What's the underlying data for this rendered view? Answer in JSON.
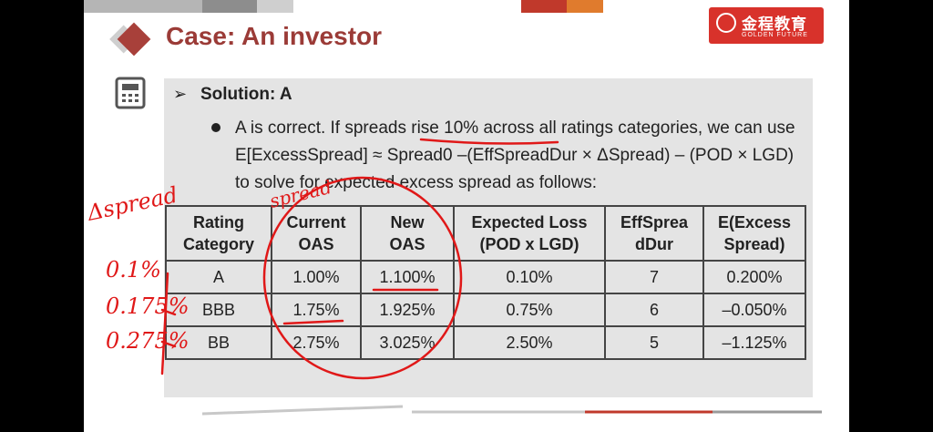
{
  "slide": {
    "title": "Case: An investor",
    "logo_text_cn": "金程教育",
    "logo_text_en": "GOLDEN FUTURE",
    "solution_heading": "Solution: A",
    "paragraph": "A is correct. If spreads rise 10% across all ratings categories, we can use E[ExcessSpread] ≈ Spread0 –(EffSpreadDur × ΔSpread) – (POD × LGD) to solve for expected excess spread as follows:"
  },
  "table": {
    "headers": [
      [
        "Rating",
        "Category"
      ],
      [
        "Current",
        "OAS"
      ],
      [
        "New",
        "OAS"
      ],
      [
        "Expected Loss",
        "(POD x LGD)"
      ],
      [
        "EffSprea",
        "dDur"
      ],
      [
        "E(Excess",
        "Spread)"
      ]
    ],
    "rows": [
      [
        "A",
        "1.00%",
        "1.100%",
        "0.10%",
        "7",
        "0.200%"
      ],
      [
        "BBB",
        "1.75%",
        "1.925%",
        "0.75%",
        "6",
        "–0.050%"
      ],
      [
        "BB",
        "2.75%",
        "3.025%",
        "2.50%",
        "5",
        "–1.125%"
      ]
    ]
  },
  "annotations": {
    "delta_spread": "Δspread",
    "spread_label": "spread",
    "row_marks": [
      "0.1%",
      "0.175%",
      "0.275%"
    ]
  },
  "colors": {
    "brand_red": "#d8322b",
    "title": "#9b3b37",
    "ink": "#e01818"
  }
}
